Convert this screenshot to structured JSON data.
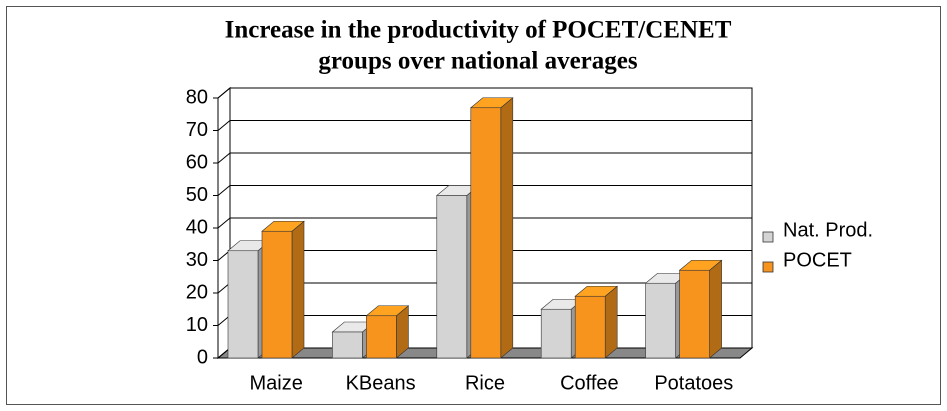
{
  "chart_data": {
    "type": "bar3d",
    "title": [
      "Increase in the productivity of POCET/CENET",
      "groups over national averages"
    ],
    "categories": [
      "Maize",
      "KBeans",
      "Rice",
      "Coffee",
      "Potatoes"
    ],
    "series": [
      {
        "name": "Nat. Prod.",
        "color": "#d4d4d4",
        "values": [
          33,
          8,
          50,
          15,
          23
        ]
      },
      {
        "name": "POCET",
        "color": "#f7941d",
        "values": [
          39,
          13,
          77,
          19,
          27
        ]
      }
    ],
    "ylim": [
      0,
      80
    ],
    "yticks": [
      0,
      10,
      20,
      30,
      40,
      50,
      60,
      70,
      80
    ],
    "grid": true,
    "legend": "right"
  }
}
